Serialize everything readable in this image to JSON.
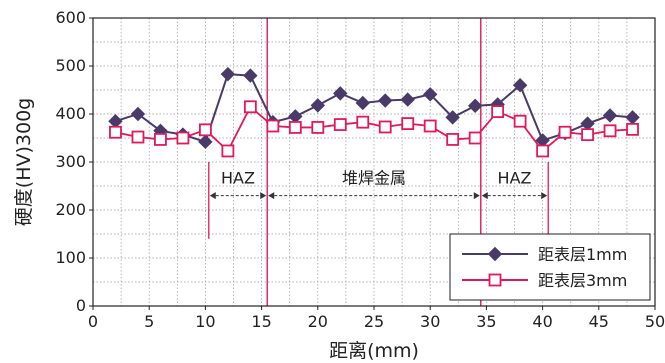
{
  "chart_data": {
    "type": "line",
    "title": "",
    "xlabel": "距离(mm)",
    "ylabel": "硬度(HV)300g",
    "xlim": [
      0,
      50
    ],
    "ylim": [
      0,
      600
    ],
    "x_ticks": [
      0,
      5,
      10,
      15,
      20,
      25,
      30,
      35,
      40,
      45,
      50
    ],
    "y_ticks": [
      0,
      100,
      200,
      300,
      400,
      500,
      600
    ],
    "grid": true,
    "legend_position": "bottom-right",
    "series": [
      {
        "name": "距表层1mm",
        "color": "#4a3a6a",
        "marker": "diamond",
        "x": [
          2,
          4,
          6,
          8,
          10,
          12,
          14,
          16,
          18,
          20,
          22,
          24,
          26,
          28,
          30,
          32,
          34,
          36,
          38,
          40,
          42,
          44,
          46,
          48
        ],
        "values": [
          385,
          400,
          365,
          357,
          342,
          483,
          480,
          383,
          395,
          418,
          443,
          423,
          428,
          430,
          441,
          393,
          417,
          420,
          460,
          345,
          360,
          380,
          397,
          393
        ]
      },
      {
        "name": "距表层3mm",
        "color": "#e0195a",
        "marker": "square",
        "x": [
          2,
          4,
          6,
          8,
          10,
          12,
          14,
          16,
          18,
          20,
          22,
          24,
          26,
          28,
          30,
          32,
          34,
          36,
          38,
          40,
          42,
          44,
          46,
          48
        ],
        "values": [
          362,
          352,
          347,
          350,
          367,
          323,
          415,
          375,
          372,
          372,
          378,
          383,
          373,
          380,
          375,
          347,
          350,
          405,
          385,
          323,
          362,
          357,
          365,
          368
        ]
      }
    ],
    "vertical_lines": [
      {
        "x": 15.5,
        "color": "#e0195a"
      },
      {
        "x": 34.5,
        "color": "#e0195a"
      }
    ],
    "regions": [
      {
        "label": "HAZ",
        "x_start": 10.3,
        "x_end": 15.5,
        "y": 230
      },
      {
        "label": "堆焊金属",
        "x_start": 15.5,
        "x_end": 34.5,
        "y": 230
      },
      {
        "label": "HAZ",
        "x_start": 34.5,
        "x_end": 40.5,
        "y": 230
      }
    ],
    "region_ticks": [
      {
        "x": 10.3,
        "y_top": 300,
        "y_bottom": 140
      },
      {
        "x": 40.5,
        "y_top": 300,
        "y_bottom": 140
      }
    ]
  }
}
